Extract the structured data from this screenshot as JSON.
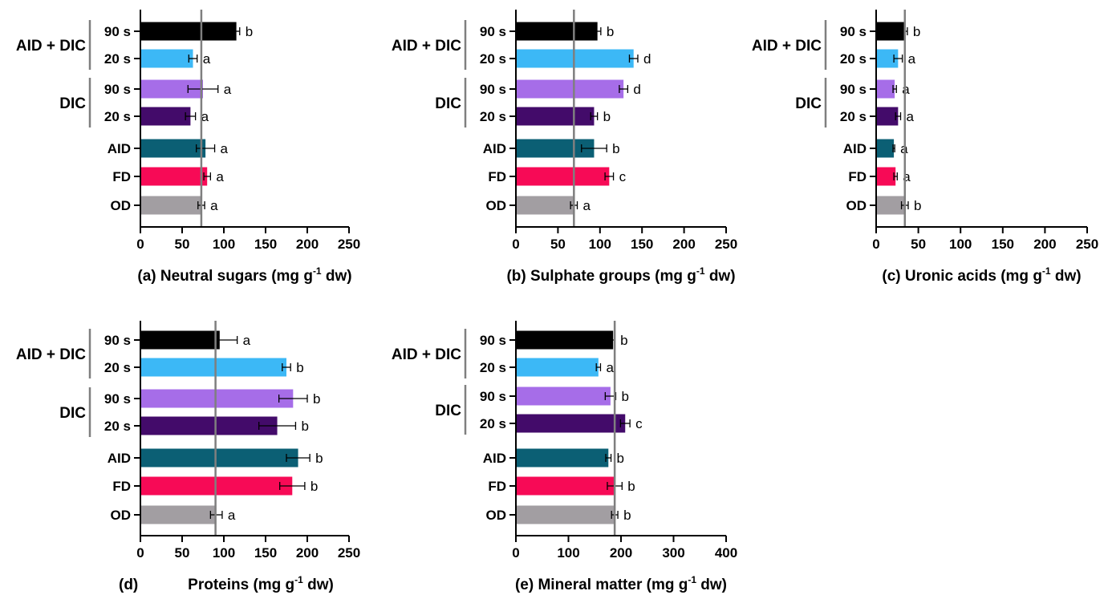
{
  "colors": {
    "AID + DIC 90 s": "#000000",
    "AID + DIC 20 s": "#3cb8f6",
    "DIC 90 s": "#a66de8",
    "DIC 20 s": "#430b6a",
    "AID": "#0b5f74",
    "FD": "#f70a56",
    "OD": "#a29ea2",
    "reference_line": "#7f7f7f"
  },
  "rows": [
    {
      "group": "AID + DIC",
      "label": "90 s",
      "key": "AID + DIC 90 s"
    },
    {
      "group": "AID + DIC",
      "label": "20 s",
      "key": "AID + DIC 20 s"
    },
    {
      "group": "DIC",
      "label": "90 s",
      "key": "DIC 90 s"
    },
    {
      "group": "DIC",
      "label": "20 s",
      "key": "DIC 20 s"
    },
    {
      "group": "",
      "label": "AID",
      "key": "AID"
    },
    {
      "group": "",
      "label": "FD",
      "key": "FD"
    },
    {
      "group": "",
      "label": "OD",
      "key": "OD"
    }
  ],
  "chart_data": [
    {
      "type": "bar",
      "orientation": "horizontal",
      "panel": "(a)",
      "xlabel": "Neutral sugars (mg g-1 dw)",
      "xlim": [
        0,
        250
      ],
      "xticks": [
        0,
        50,
        100,
        150,
        200,
        250
      ],
      "reference_value": 73,
      "categories": [
        "AID + DIC 90 s",
        "AID + DIC 20 s",
        "DIC 90 s",
        "DIC 20 s",
        "AID",
        "FD",
        "OD"
      ],
      "values": [
        115,
        63,
        75,
        60,
        78,
        80,
        73
      ],
      "errors": [
        4,
        5,
        18,
        6,
        11,
        4,
        4
      ],
      "letters": [
        "b",
        "a",
        "a",
        "a",
        "a",
        "a",
        "a"
      ]
    },
    {
      "type": "bar",
      "orientation": "horizontal",
      "panel": "(b)",
      "xlabel": "Sulphate groups (mg g-1 dw)",
      "xlim": [
        0,
        250
      ],
      "xticks": [
        0,
        50,
        100,
        150,
        200,
        250
      ],
      "reference_value": 69,
      "categories": [
        "AID + DIC 90 s",
        "AID + DIC 20 s",
        "DIC 90 s",
        "DIC 20 s",
        "AID",
        "FD",
        "OD"
      ],
      "values": [
        97,
        140,
        128,
        93,
        93,
        111,
        69
      ],
      "errors": [
        4,
        5,
        5,
        4,
        15,
        5,
        4
      ],
      "letters": [
        "b",
        "d",
        "d",
        "b",
        "b",
        "c",
        "a"
      ]
    },
    {
      "type": "bar",
      "orientation": "horizontal",
      "panel": "(c)",
      "xlabel": "Uronic acids (mg g-1 dw)",
      "xlim": [
        0,
        250
      ],
      "xticks": [
        0,
        50,
        100,
        150,
        200,
        250
      ],
      "reference_value": 34,
      "categories": [
        "AID + DIC 90 s",
        "AID + DIC 20 s",
        "DIC 90 s",
        "DIC 20 s",
        "AID",
        "FD",
        "OD"
      ],
      "values": [
        34,
        26,
        22,
        26,
        21,
        23,
        34
      ],
      "errors": [
        3,
        5,
        2,
        3,
        1,
        2,
        4
      ],
      "letters": [
        "b",
        "a",
        "a",
        "a",
        "a",
        "a",
        "b"
      ]
    },
    {
      "type": "bar",
      "orientation": "horizontal",
      "panel": "(d)",
      "xlabel": "Proteins (mg g-1 dw)",
      "xlim": [
        0,
        250
      ],
      "xticks": [
        0,
        50,
        100,
        150,
        200,
        250
      ],
      "reference_value": 90,
      "categories": [
        "AID + DIC 90 s",
        "AID + DIC 20 s",
        "DIC 90 s",
        "DIC 20 s",
        "AID",
        "FD",
        "OD"
      ],
      "values": [
        95,
        175,
        183,
        164,
        189,
        182,
        91
      ],
      "errors": [
        21,
        5,
        17,
        22,
        14,
        15,
        7
      ],
      "letters": [
        "a",
        "b",
        "b",
        "b",
        "b",
        "b",
        "a"
      ]
    },
    {
      "type": "bar",
      "orientation": "horizontal",
      "panel": "(e)",
      "xlabel": "Mineral matter (mg g-1 dw)",
      "xlim": [
        0,
        400
      ],
      "xticks": [
        0,
        100,
        200,
        300,
        400
      ],
      "reference_value": 188,
      "categories": [
        "AID + DIC 90 s",
        "AID + DIC 20 s",
        "DIC 90 s",
        "DIC 20 s",
        "AID",
        "FD",
        "OD"
      ],
      "values": [
        185,
        157,
        180,
        208,
        176,
        188,
        188
      ],
      "errors": [
        3,
        4,
        10,
        9,
        5,
        14,
        6
      ],
      "letters": [
        "b",
        "a",
        "b",
        "c",
        "b",
        "b",
        "b"
      ]
    }
  ]
}
